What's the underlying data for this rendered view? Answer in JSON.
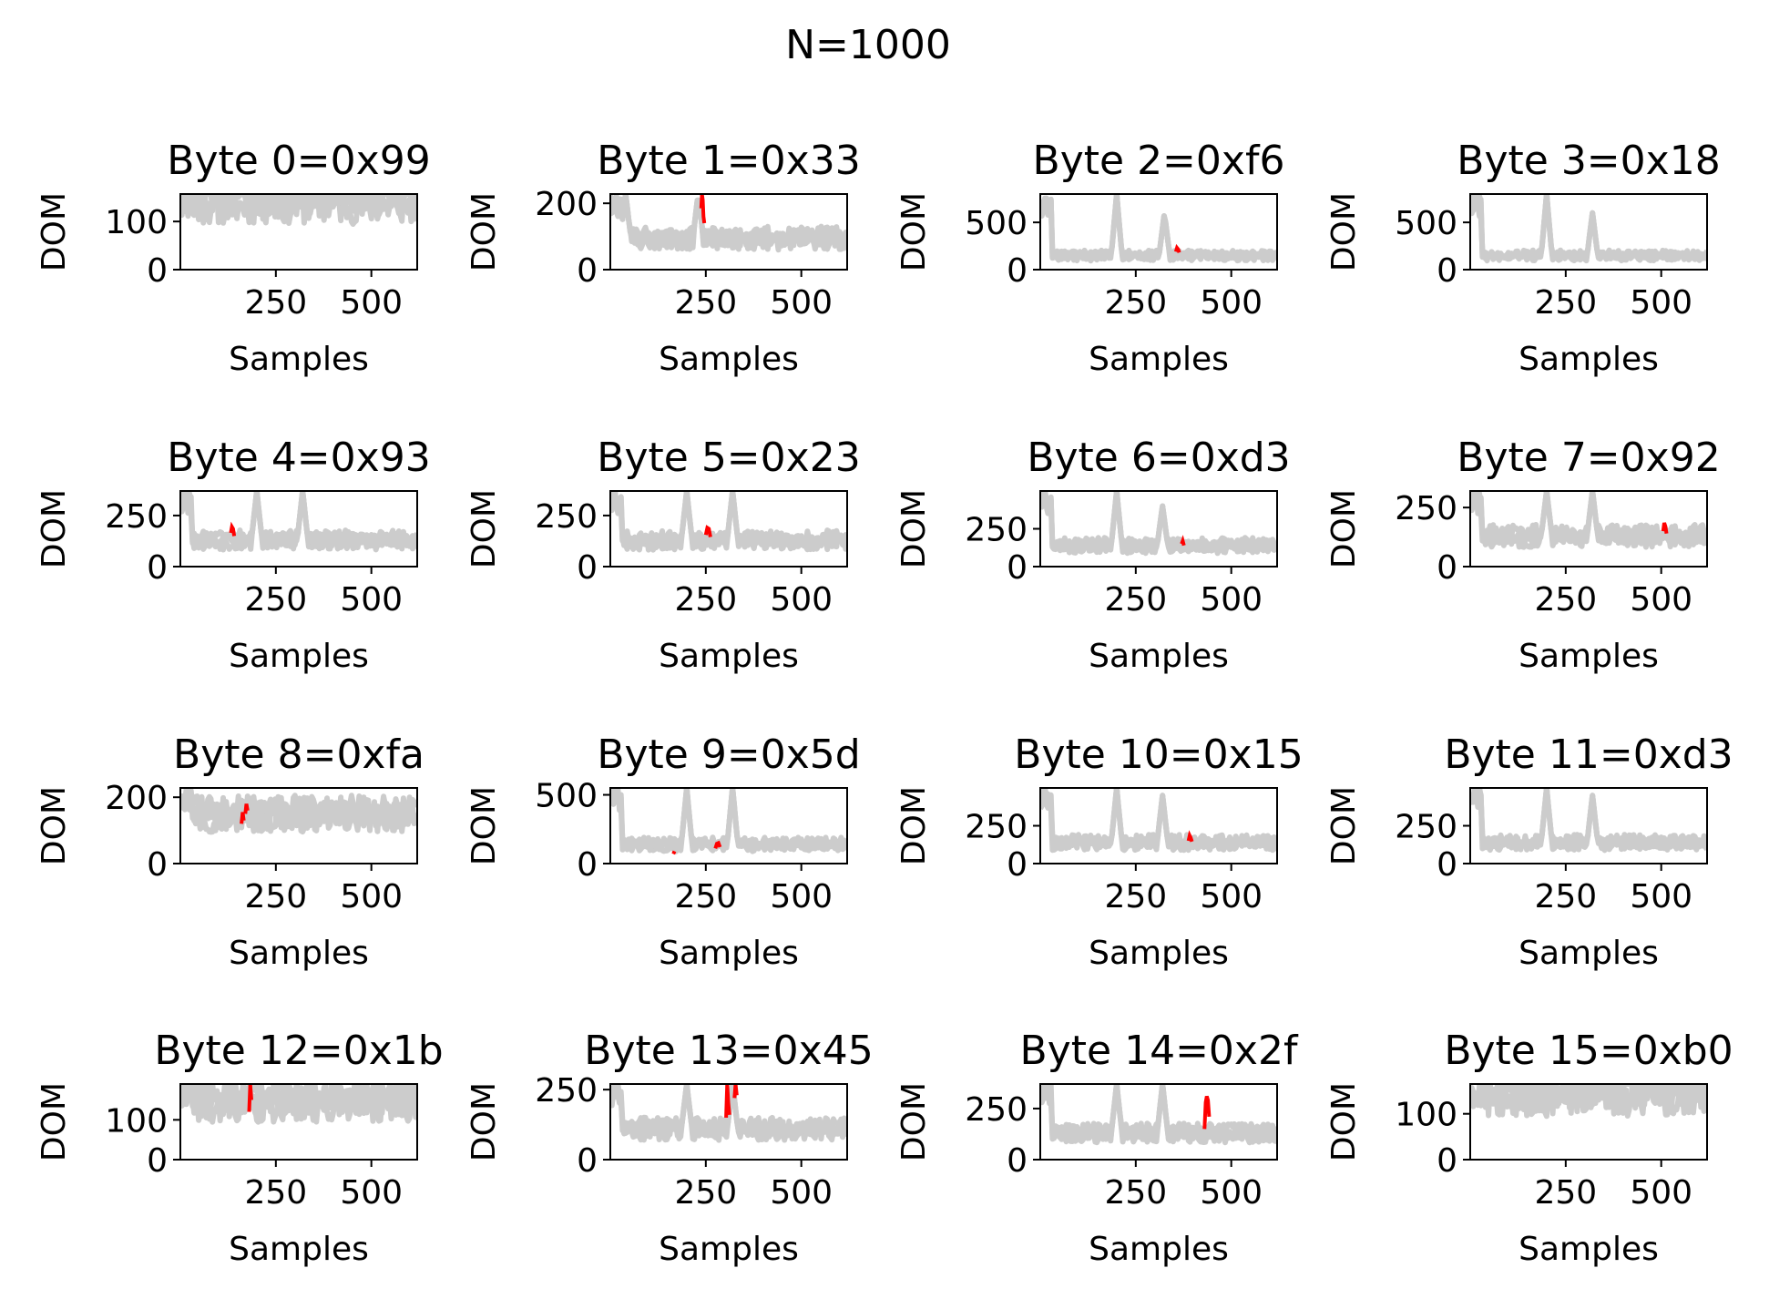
{
  "figure": {
    "suptitle": "N=1000",
    "colors": {
      "background_traces": "#cccccc",
      "highlight_traces": "#ff0000",
      "axes": "#000000"
    }
  },
  "chart_data": [
    {
      "type": "line",
      "title": "Byte 0=0x99",
      "xlabel": "Samples",
      "ylabel": "DOM",
      "xlim": [
        0,
        620
      ],
      "ylim": [
        0,
        157
      ],
      "xticks": [
        250,
        500
      ],
      "yticks": [
        0,
        100
      ],
      "seed": 11,
      "base": 150,
      "spikes": [],
      "highlight": []
    },
    {
      "type": "line",
      "title": "Byte 1=0x33",
      "xlabel": "Samples",
      "ylabel": "DOM",
      "xlim": [
        0,
        620
      ],
      "ylim": [
        0,
        228
      ],
      "xticks": [
        250,
        500
      ],
      "yticks": [
        0,
        200
      ],
      "seed": 23,
      "base": 95,
      "spikes": [
        {
          "x": 10,
          "y": 228
        },
        {
          "x": 40,
          "y": 228
        },
        {
          "x": 230,
          "y": 228
        }
      ],
      "highlight": [
        {
          "x": [
            238,
            240,
            242,
            244,
            246
          ],
          "y": [
            185,
            228,
            210,
            160,
            140
          ]
        }
      ]
    },
    {
      "type": "line",
      "title": "Byte 2=0xf6",
      "xlabel": "Samples",
      "ylabel": "DOM",
      "xlim": [
        0,
        620
      ],
      "ylim": [
        0,
        800
      ],
      "xticks": [
        250,
        500
      ],
      "yticks": [
        0,
        500
      ],
      "seed": 37,
      "base": 150,
      "spikes": [
        {
          "x": 15,
          "y": 800
        },
        {
          "x": 200,
          "y": 800
        },
        {
          "x": 325,
          "y": 600
        }
      ],
      "highlight": [
        {
          "x": [
            355,
            358,
            361,
            364
          ],
          "y": [
            190,
            230,
            215,
            180
          ]
        }
      ]
    },
    {
      "type": "line",
      "title": "Byte 3=0x18",
      "xlabel": "Samples",
      "ylabel": "DOM",
      "xlim": [
        0,
        620
      ],
      "ylim": [
        0,
        800
      ],
      "xticks": [
        250,
        500
      ],
      "yticks": [
        0,
        500
      ],
      "seed": 41,
      "base": 150,
      "spikes": [
        {
          "x": 15,
          "y": 800
        },
        {
          "x": 200,
          "y": 800
        },
        {
          "x": 320,
          "y": 600
        }
      ],
      "highlight": []
    },
    {
      "type": "line",
      "title": "Byte 4=0x93",
      "xlabel": "Samples",
      "ylabel": "DOM",
      "xlim": [
        0,
        620
      ],
      "ylim": [
        0,
        370
      ],
      "xticks": [
        250,
        500
      ],
      "yticks": [
        0,
        250
      ],
      "seed": 53,
      "base": 130,
      "spikes": [
        {
          "x": 12,
          "y": 370
        },
        {
          "x": 200,
          "y": 370
        },
        {
          "x": 320,
          "y": 370
        }
      ],
      "highlight": [
        {
          "x": [
            132,
            135,
            138,
            141
          ],
          "y": [
            165,
            195,
            185,
            150
          ]
        }
      ]
    },
    {
      "type": "line",
      "title": "Byte 5=0x23",
      "xlabel": "Samples",
      "ylabel": "DOM",
      "xlim": [
        0,
        620
      ],
      "ylim": [
        0,
        370
      ],
      "xticks": [
        250,
        500
      ],
      "yticks": [
        0,
        250
      ],
      "seed": 67,
      "base": 130,
      "spikes": [
        {
          "x": 12,
          "y": 370
        },
        {
          "x": 200,
          "y": 370
        },
        {
          "x": 320,
          "y": 370
        }
      ],
      "highlight": [
        {
          "x": [
            250,
            254,
            258,
            262
          ],
          "y": [
            155,
            190,
            185,
            145
          ]
        }
      ]
    },
    {
      "type": "line",
      "title": "Byte 6=0xd3",
      "xlabel": "Samples",
      "ylabel": "DOM",
      "xlim": [
        0,
        620
      ],
      "ylim": [
        0,
        500
      ],
      "xticks": [
        250,
        500
      ],
      "yticks": [
        0,
        250
      ],
      "seed": 71,
      "base": 140,
      "spikes": [
        {
          "x": 12,
          "y": 500
        },
        {
          "x": 200,
          "y": 500
        },
        {
          "x": 320,
          "y": 400
        }
      ],
      "highlight": [
        {
          "x": [
            370,
            373,
            376
          ],
          "y": [
            150,
            170,
            140
          ]
        }
      ]
    },
    {
      "type": "line",
      "title": "Byte 7=0x92",
      "xlabel": "Samples",
      "ylabel": "DOM",
      "xlim": [
        0,
        620
      ],
      "ylim": [
        0,
        320
      ],
      "xticks": [
        250,
        500
      ],
      "yticks": [
        0,
        250
      ],
      "seed": 83,
      "base": 130,
      "spikes": [
        {
          "x": 12,
          "y": 320
        },
        {
          "x": 200,
          "y": 320
        },
        {
          "x": 320,
          "y": 320
        }
      ],
      "highlight": [
        {
          "x": [
            505,
            508,
            511,
            514
          ],
          "y": [
            150,
            185,
            170,
            140
          ]
        }
      ]
    },
    {
      "type": "line",
      "title": "Byte 8=0xfa",
      "xlabel": "Samples",
      "ylabel": "DOM",
      "xlim": [
        0,
        620
      ],
      "ylim": [
        0,
        228
      ],
      "xticks": [
        250,
        500
      ],
      "yticks": [
        0,
        200
      ],
      "seed": 97,
      "base": 150,
      "spikes": [],
      "highlight": [
        {
          "x": [
            160,
            163,
            166
          ],
          "y": [
            120,
            155,
            130
          ]
        },
        {
          "x": 170,
          "y": [
            150,
            180,
            160
          ]
        }
      ]
    },
    {
      "type": "line",
      "title": "Byte 9=0x5d",
      "xlabel": "Samples",
      "ylabel": "DOM",
      "xlim": [
        0,
        620
      ],
      "ylim": [
        0,
        550
      ],
      "xticks": [
        250,
        500
      ],
      "yticks": [
        0,
        500
      ],
      "seed": 101,
      "base": 140,
      "spikes": [
        {
          "x": 12,
          "y": 550
        },
        {
          "x": 200,
          "y": 550
        },
        {
          "x": 320,
          "y": 550
        }
      ],
      "highlight": [
        {
          "x": [
            165,
            168
          ],
          "y": [
            70,
            90
          ]
        },
        {
          "x": [
            275,
            279,
            283,
            287
          ],
          "y": [
            110,
            145,
            150,
            120
          ]
        }
      ]
    },
    {
      "type": "line",
      "title": "Byte 10=0x15",
      "xlabel": "Samples",
      "ylabel": "DOM",
      "xlim": [
        0,
        620
      ],
      "ylim": [
        0,
        500
      ],
      "xticks": [
        250,
        500
      ],
      "yticks": [
        0,
        250
      ],
      "seed": 113,
      "base": 140,
      "spikes": [
        {
          "x": 12,
          "y": 500
        },
        {
          "x": 200,
          "y": 500
        },
        {
          "x": 320,
          "y": 450
        }
      ],
      "highlight": [
        {
          "x": [
            388,
            391,
            394,
            397
          ],
          "y": [
            150,
            185,
            170,
            145
          ]
        }
      ]
    },
    {
      "type": "line",
      "title": "Byte 11=0xd3",
      "xlabel": "Samples",
      "ylabel": "DOM",
      "xlim": [
        0,
        620
      ],
      "ylim": [
        0,
        500
      ],
      "xticks": [
        250,
        500
      ],
      "yticks": [
        0,
        250
      ],
      "seed": 127,
      "base": 140,
      "spikes": [
        {
          "x": 12,
          "y": 500
        },
        {
          "x": 200,
          "y": 500
        },
        {
          "x": 320,
          "y": 450
        }
      ],
      "highlight": []
    },
    {
      "type": "line",
      "title": "Byte 12=0x1b",
      "xlabel": "Samples",
      "ylabel": "DOM",
      "xlim": [
        0,
        620
      ],
      "ylim": [
        0,
        190
      ],
      "xticks": [
        250,
        500
      ],
      "yticks": [
        0,
        100
      ],
      "seed": 131,
      "base": 150,
      "spikes": [],
      "highlight": [
        {
          "x": [
            180,
            183,
            186
          ],
          "y": [
            120,
            190,
            150
          ]
        }
      ]
    },
    {
      "type": "line",
      "title": "Byte 13=0x45",
      "xlabel": "Samples",
      "ylabel": "DOM",
      "xlim": [
        0,
        620
      ],
      "ylim": [
        0,
        270
      ],
      "xticks": [
        250,
        500
      ],
      "yticks": [
        0,
        250
      ],
      "seed": 139,
      "base": 110,
      "spikes": [
        {
          "x": 12,
          "y": 270
        },
        {
          "x": 200,
          "y": 270
        },
        {
          "x": 320,
          "y": 270
        }
      ],
      "highlight": [
        {
          "x": [
            303,
            306,
            309,
            312
          ],
          "y": [
            150,
            270,
            200,
            160
          ]
        },
        {
          "x": [
            325,
            328,
            331
          ],
          "y": [
            220,
            270,
            230
          ]
        }
      ]
    },
    {
      "type": "line",
      "title": "Byte 14=0x2f",
      "xlabel": "Samples",
      "ylabel": "DOM",
      "xlim": [
        0,
        620
      ],
      "ylim": [
        0,
        370
      ],
      "xticks": [
        250,
        500
      ],
      "yticks": [
        0,
        250
      ],
      "seed": 149,
      "base": 130,
      "spikes": [
        {
          "x": 12,
          "y": 370
        },
        {
          "x": 200,
          "y": 370
        },
        {
          "x": 320,
          "y": 370
        }
      ],
      "highlight": [
        {
          "x": [
            430,
            433,
            436,
            439,
            442
          ],
          "y": [
            150,
            280,
            310,
            290,
            210
          ]
        }
      ]
    },
    {
      "type": "line",
      "title": "Byte 15=0xb0",
      "xlabel": "Samples",
      "ylabel": "DOM",
      "xlim": [
        0,
        620
      ],
      "ylim": [
        0,
        165
      ],
      "xticks": [
        250,
        500
      ],
      "yticks": [
        0,
        100
      ],
      "seed": 157,
      "base": 150,
      "spikes": [],
      "highlight": []
    }
  ]
}
